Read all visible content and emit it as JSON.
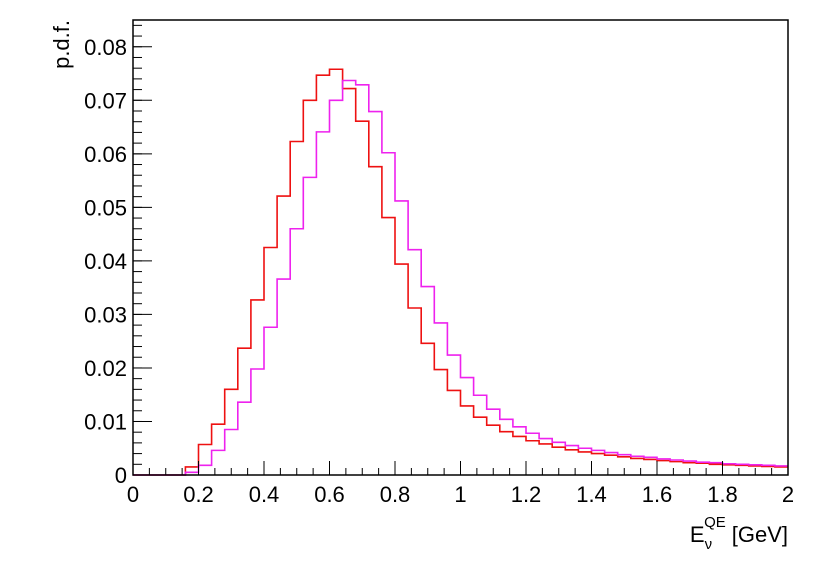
{
  "chart_data": {
    "type": "line",
    "title": "",
    "xlabel": {
      "main": "E",
      "sub": "ν",
      "sup": "QE",
      "unit": "[GeV]"
    },
    "ylabel": "p.d.f.",
    "xlim": [
      0,
      2
    ],
    "ylim": [
      0,
      0.085
    ],
    "grid": false,
    "bin_width": 0.04,
    "x_ticks": [
      {
        "value": 0,
        "label": "0"
      },
      {
        "value": 0.2,
        "label": "0.2"
      },
      {
        "value": 0.4,
        "label": "0.4"
      },
      {
        "value": 0.6,
        "label": "0.6"
      },
      {
        "value": 0.8,
        "label": "0.8"
      },
      {
        "value": 1.0,
        "label": "1"
      },
      {
        "value": 1.2,
        "label": "1.2"
      },
      {
        "value": 1.4,
        "label": "1.4"
      },
      {
        "value": 1.6,
        "label": "1.6"
      },
      {
        "value": 1.8,
        "label": "1.8"
      },
      {
        "value": 2.0,
        "label": "2"
      }
    ],
    "y_ticks": [
      {
        "value": 0,
        "label": "0"
      },
      {
        "value": 0.01,
        "label": "0.01"
      },
      {
        "value": 0.02,
        "label": "0.02"
      },
      {
        "value": 0.03,
        "label": "0.03"
      },
      {
        "value": 0.04,
        "label": "0.04"
      },
      {
        "value": 0.05,
        "label": "0.05"
      },
      {
        "value": 0.06,
        "label": "0.06"
      },
      {
        "value": 0.07,
        "label": "0.07"
      },
      {
        "value": 0.08,
        "label": "0.08"
      }
    ],
    "series": [
      {
        "color": "#ee1111",
        "values": [
          0,
          0,
          0,
          0,
          0.0015,
          0.0057,
          0.0095,
          0.016,
          0.0237,
          0.0327,
          0.0425,
          0.0521,
          0.0623,
          0.07,
          0.0747,
          0.0758,
          0.0722,
          0.0661,
          0.0576,
          0.0481,
          0.0394,
          0.0312,
          0.0246,
          0.0197,
          0.0158,
          0.0129,
          0.0108,
          0.0093,
          0.0081,
          0.0072,
          0.0064,
          0.0058,
          0.0052,
          0.0047,
          0.0043,
          0.004,
          0.0037,
          0.0034,
          0.0031,
          0.0029,
          0.0027,
          0.0025,
          0.0023,
          0.0022,
          0.002,
          0.0019,
          0.0018,
          0.0017,
          0.0016,
          0.0015
        ]
      },
      {
        "color": "#ee22ee",
        "values": [
          0,
          0,
          0,
          0,
          0.0005,
          0.0018,
          0.0046,
          0.0085,
          0.0136,
          0.0198,
          0.0276,
          0.0366,
          0.046,
          0.0556,
          0.0641,
          0.07,
          0.0737,
          0.0729,
          0.0679,
          0.0602,
          0.0512,
          0.0421,
          0.0352,
          0.0284,
          0.0224,
          0.0182,
          0.0149,
          0.0123,
          0.0104,
          0.009,
          0.0078,
          0.0068,
          0.0061,
          0.0055,
          0.005,
          0.0046,
          0.0042,
          0.0038,
          0.0035,
          0.0033,
          0.003,
          0.0028,
          0.0026,
          0.0024,
          0.0023,
          0.0021,
          0.002,
          0.0019,
          0.0018,
          0.0017
        ]
      }
    ]
  }
}
